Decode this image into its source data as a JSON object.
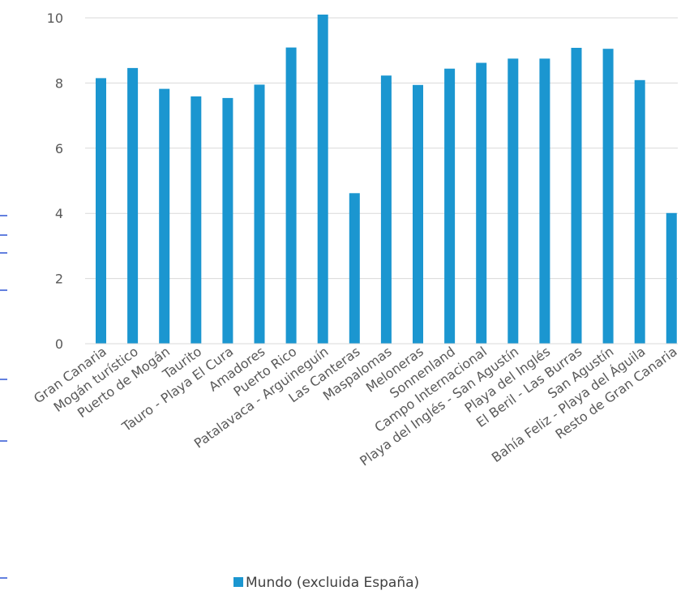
{
  "chart_data": {
    "type": "bar",
    "categories": [
      "Gran Canaria",
      "Mogán turístico",
      "Puerto de Mogán",
      "Taurito",
      "Tauro - Playa El Cura",
      "Amadores",
      "Puerto Rico",
      "Patalavaca - Arguineguín",
      "Las Canteras",
      "Maspalomas",
      "Meloneras",
      "Sonnenland",
      "Campo Internacional",
      "Playa del Inglés - San Agustín",
      "Playa del Inglés",
      "El Beril - Las Burras",
      "San Agustín",
      "Bahía Feliz - Playa del Águila",
      "Resto de Gran Canaria"
    ],
    "series": [
      {
        "name": "Mundo (excluida España)",
        "values": [
          8.15,
          8.46,
          7.82,
          7.59,
          7.54,
          7.95,
          9.09,
          10.1,
          4.62,
          8.23,
          7.94,
          8.44,
          8.62,
          8.75,
          8.75,
          9.08,
          9.05,
          8.09,
          4.01
        ],
        "color": "#1b96d0"
      }
    ],
    "ylim": [
      0,
      10
    ],
    "yticks": [
      "0",
      "2",
      "4",
      "6",
      "8",
      "10"
    ],
    "grid": true,
    "legend_position": "bottom"
  }
}
